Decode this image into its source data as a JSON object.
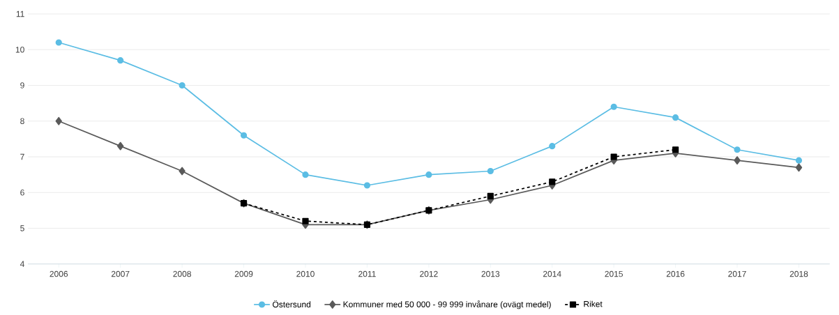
{
  "chart_data": {
    "type": "line",
    "categories": [
      "2006",
      "2007",
      "2008",
      "2009",
      "2010",
      "2011",
      "2012",
      "2013",
      "2014",
      "2015",
      "2016",
      "2017",
      "2018"
    ],
    "series": [
      {
        "name": "Östersund",
        "color": "#5bbde4",
        "marker": "circle",
        "line_style": "solid",
        "values": [
          10.2,
          9.7,
          9.0,
          7.6,
          6.5,
          6.2,
          6.5,
          6.6,
          7.3,
          8.4,
          8.1,
          7.2,
          6.9
        ]
      },
      {
        "name": "Kommuner med 50 000 - 99 999 invånare (ovägt medel)",
        "color": "#5a5a5a",
        "marker": "diamond",
        "line_style": "solid",
        "values": [
          8.0,
          7.3,
          6.6,
          5.7,
          5.1,
          5.1,
          5.5,
          5.8,
          6.2,
          6.9,
          7.1,
          6.9,
          6.7
        ]
      },
      {
        "name": "Riket",
        "color": "#000000",
        "marker": "square",
        "line_style": "dashed",
        "values": [
          null,
          null,
          null,
          5.7,
          5.2,
          5.1,
          5.5,
          5.9,
          6.3,
          7.0,
          7.2,
          null,
          null
        ]
      }
    ],
    "ylim": [
      4,
      11
    ],
    "yticks": [
      4,
      5,
      6,
      7,
      8,
      9,
      10,
      11
    ],
    "grid": "y",
    "legend": "bottom"
  }
}
